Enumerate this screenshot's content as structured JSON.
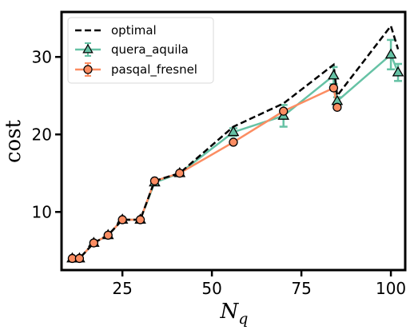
{
  "chart_data": {
    "type": "line",
    "xlabel": "N",
    "xlabel_sub": "q",
    "ylabel": "cost",
    "xlim": [
      8,
      104
    ],
    "ylim": [
      2.5,
      35.8
    ],
    "xticks": [
      25,
      50,
      75,
      100
    ],
    "yticks": [
      10,
      20,
      30
    ],
    "legend_position": "top-left",
    "grid": false,
    "series": [
      {
        "name": "optimal",
        "style": "dashed",
        "color": "#000000",
        "x": [
          11,
          13,
          17,
          21,
          25,
          30,
          34,
          41,
          56,
          70,
          84,
          85,
          100,
          102
        ],
        "y": [
          4,
          4,
          6,
          7,
          9,
          9,
          14,
          15,
          21,
          24,
          29,
          25,
          34,
          31
        ]
      },
      {
        "name": "quera_aquila",
        "color": "#66c2a5",
        "marker": "triangle",
        "x": [
          11,
          13,
          17,
          21,
          25,
          30,
          34,
          41,
          56,
          70,
          84,
          85,
          100,
          102
        ],
        "y": [
          4,
          4,
          6,
          7,
          9,
          9,
          13.8,
          15,
          20.3,
          22.4,
          27.6,
          24.3,
          30.3,
          28.0
        ],
        "err": [
          0,
          0,
          0,
          0,
          0,
          0,
          0.3,
          0,
          0.5,
          1.4,
          1.1,
          0.5,
          1.9,
          1.1
        ]
      },
      {
        "name": "pasqal_fresnel",
        "color": "#fc8d62",
        "marker": "circle",
        "x": [
          11,
          13,
          17,
          21,
          25,
          30,
          34,
          41,
          56,
          70,
          84,
          85
        ],
        "y": [
          4,
          4,
          6,
          7,
          9,
          9,
          14,
          15,
          19,
          23,
          26,
          23.5
        ]
      }
    ]
  }
}
